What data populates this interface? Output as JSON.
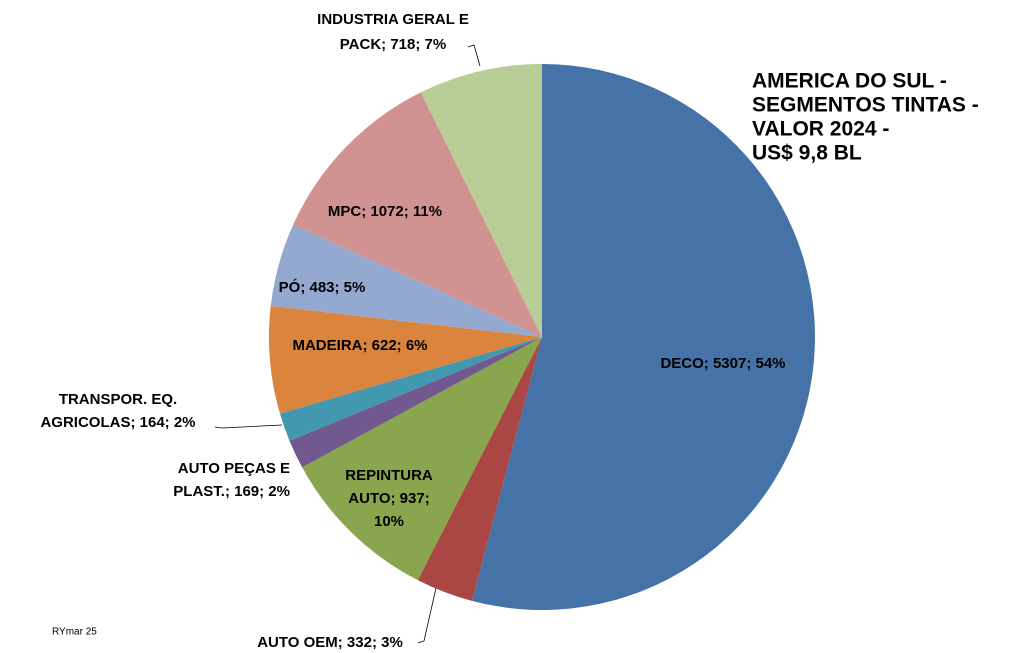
{
  "chart_data": {
    "type": "pie",
    "title": [
      "AMERICA DO SUL -",
      "SEGMENTOS TINTAS -",
      "VALOR 2024 -",
      "US$ 9,8 BL"
    ],
    "values": [
      5307,
      332,
      937,
      169,
      164,
      622,
      483,
      1072,
      718
    ],
    "value_labels": [
      [
        "DECO; 5307; 54%"
      ],
      [
        "AUTO OEM; 332; 3%"
      ],
      [
        "REPINTURA",
        "AUTO; 937;",
        "10%"
      ],
      [
        "AUTO PEÇAS E",
        "PLAST.; 169; 2%"
      ],
      [
        "TRANSPOR. EQ.",
        "AGRICOLAS; 164; 2%"
      ],
      [
        "MADEIRA; 622; 6%"
      ],
      [
        "PÓ; 483; 5%"
      ],
      [
        "MPC; 1072; 11%"
      ],
      [
        "INDUSTRIA GERAL E",
        "PACK; 718; 7%"
      ]
    ],
    "colors": [
      "#4572a7",
      "#aa4643",
      "#89a54e",
      "#71588f",
      "#4198af",
      "#db843d",
      "#93a9cf",
      "#d19392",
      "#b9cd96"
    ],
    "annotation": "RYmar 25"
  }
}
